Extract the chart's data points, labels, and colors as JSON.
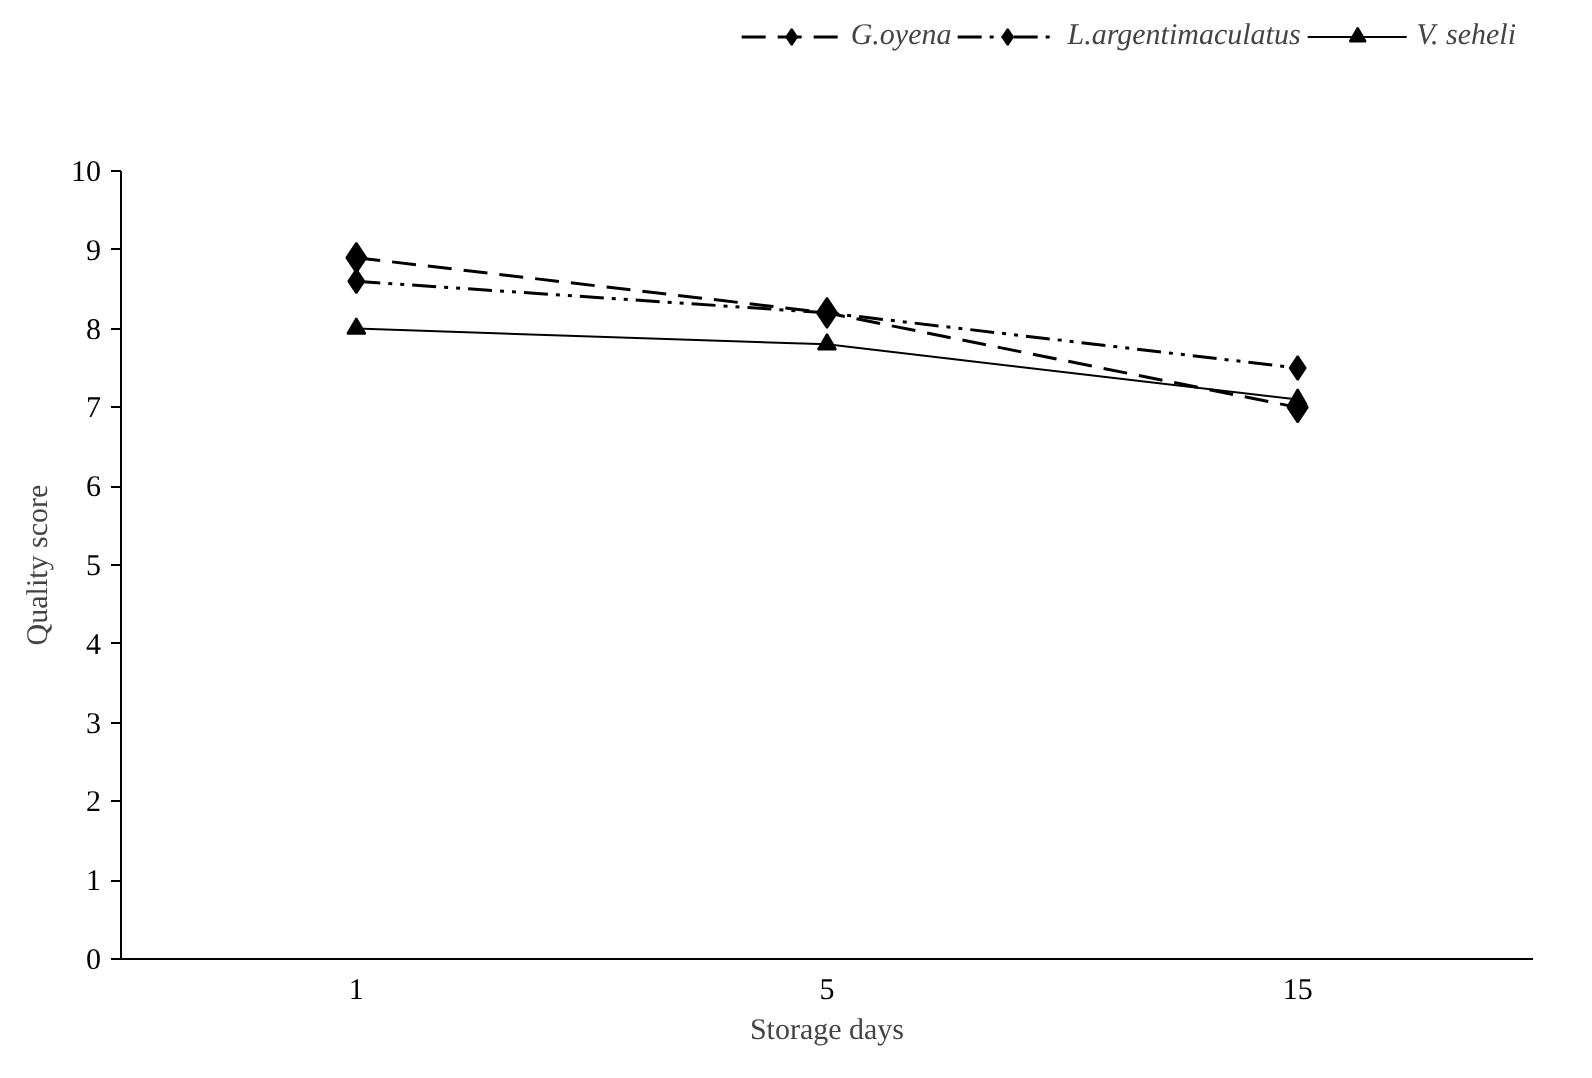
{
  "chart_data": {
    "type": "line",
    "xlabel": "Storage days",
    "ylabel": "Quality score",
    "categories": [
      "1",
      "5",
      "15"
    ],
    "series": [
      {
        "name": "G.oyena",
        "color": "#000000",
        "values": [
          8.9,
          8.2,
          7.0
        ],
        "line_style": "dashed",
        "marker": "diamond"
      },
      {
        "name": "L.argentimaculatus",
        "color": "#000000",
        "values": [
          8.6,
          8.2,
          7.5
        ],
        "line_style": "dashdot",
        "marker": "diamond"
      },
      {
        "name": "V. seheli",
        "color": "#000000",
        "values": [
          8.0,
          7.8,
          7.1
        ],
        "line_style": "solid",
        "marker": "triangle"
      }
    ],
    "ylim": [
      0,
      10
    ],
    "yticks": [
      0,
      1,
      2,
      3,
      4,
      5,
      6,
      7,
      8,
      9,
      10
    ],
    "grid": false,
    "legend": "top right"
  }
}
